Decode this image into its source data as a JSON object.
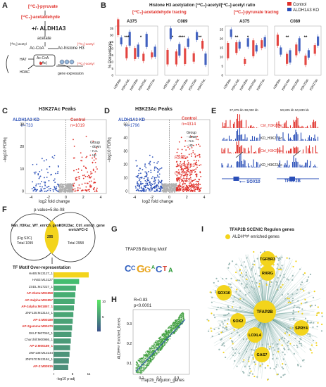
{
  "panels": {
    "A": {
      "label": "A",
      "pyruvate": "[¹³C₂]-pyruvate",
      "acetaldehyde": "[¹³C₂]-acetaldehyde",
      "aldh": "+/- ALDH1A3",
      "acetate": "acetate",
      "acoa": "Ac-CoA",
      "histone": "Ac-histone H3",
      "acetyl_lbl": "[¹³C₂]-acetyl",
      "acetyl_lbl2": "[¹³C₂]-acetyl",
      "acetyl_lbl3": "[¹³C₂]-acetyl",
      "hat": "HAT",
      "acoa2": "Ac-CoA",
      "ac_circ": "(•Ac)",
      "hdac": "HDAC",
      "gene_expr": "gene expression"
    },
    "B": {
      "label": "B",
      "title": "Histone H3 acetylation [¹³C₂]-acetyl/[¹²C₂]-acetyl ratio",
      "left_title": "[¹³C₂]-acetaldehyde tracing",
      "right_title": "[¹³C₂]-pyruvate tracing",
      "ylabel": "% Percentage",
      "legend": [
        "Control",
        "ALDH1A3 KO"
      ],
      "sub": [
        "A375",
        "C089",
        "A375",
        "C089"
      ],
      "xticks": [
        "H3K9ac",
        "H3K14ac",
        "H3K18ac",
        "H3K23ac",
        "H3K27ac"
      ],
      "yticks_left": [
        "0",
        "5",
        "10",
        "15",
        "20",
        "25",
        "30",
        "35"
      ],
      "yticks_right": [
        "0",
        "5",
        "10",
        "15",
        "20",
        "25"
      ]
    },
    "C": {
      "label": "C",
      "title": "H3K27Ac Peaks",
      "kd": "ALDH1A3 KD",
      "kd_n": "n=733",
      "ctrl": "Control",
      "ctrl_n": "n=1019",
      "legend_title": "Group",
      "legend": [
        "down",
        "n.s.",
        "up"
      ],
      "ylabel": "−log10 FDRq",
      "xlabel": "log2 fold change",
      "xticks": [
        "-4",
        "-2",
        "0",
        "2",
        "4"
      ],
      "yticks": [
        "0",
        "10",
        "20",
        "30"
      ]
    },
    "D": {
      "label": "D",
      "title": "H3K23Ac Peaks",
      "kd": "ALDH1A3 KD",
      "kd_n": "n=1796",
      "ctrl": "Control",
      "ctrl_n": "n=4314",
      "legend_title": "Group",
      "legend": [
        "down",
        "n.s.",
        "up"
      ],
      "genes": [
        "RXRG",
        "PFKFB3",
        "GAS7",
        "TFAP2B",
        "SOX10"
      ],
      "ylabel": "−log10 FDRq",
      "xlabel": "log2 fold change",
      "xticks": [
        "-4",
        "-2",
        "0",
        "2",
        "4"
      ],
      "yticks": [
        "0",
        "10",
        "20",
        "30",
        "40",
        "50"
      ]
    },
    "E": {
      "label": "E",
      "tracks": [
        "Ctrl_H3K27Ac",
        "KD_H3K27Ac",
        "Ctrl_H3K23Ac",
        "KD_H3K23Ac"
      ],
      "gene1": "SOX10",
      "gene2": "TFAP2B",
      "scale1": "37,875 kb   38,000 kb",
      "scale2": "50,825 kb   50,830 kb"
    },
    "F": {
      "label": "F",
      "pvalue": "p-value=5.8e-08",
      "left_set": "Pan_H3Kac_WT_enrich_gene",
      "left_note": "(Fig S3C)",
      "left_total": "Total 1099",
      "right_set": "H3K23ac_Ctrl_enrich_gene enrichFC>2",
      "right_total": "Total 2958",
      "overlap": "295",
      "tf_title": "TF Motif Over-representation",
      "motifs": [
        {
          "name": "HAB5:M13127_1",
          "red": false,
          "v": 11
        },
        {
          "name": "HAB3:M13127",
          "red": false,
          "v": 8
        },
        {
          "name": "ZXDL:M17227_1",
          "red": false,
          "v": 7
        },
        {
          "name": "AP-2beta:M01858",
          "red": true,
          "v": 6.8
        },
        {
          "name": "AP-2alpha:M01857",
          "red": true,
          "v": 6.6
        },
        {
          "name": "AP-2alpha:M01857_1",
          "red": true,
          "v": 6.4
        },
        {
          "name": "ZNF135:M13144_1",
          "red": false,
          "v": 6.2
        },
        {
          "name": "AP-2:M00189",
          "red": true,
          "v": 6
        },
        {
          "name": "AP-2gamma:M00470",
          "red": true,
          "v": 5.8
        },
        {
          "name": "GKLF:M07040_1",
          "red": false,
          "v": 5.6
        },
        {
          "name": "Churchill:M00986_1",
          "red": false,
          "v": 5.4
        },
        {
          "name": "AP-2:M00189_1",
          "red": true,
          "v": 5.2
        },
        {
          "name": "ZNF138:M13144",
          "red": false,
          "v": 5
        },
        {
          "name": "ZNF670:M13184_1",
          "red": false,
          "v": 4.8
        },
        {
          "name": "AP-2:M00915",
          "red": true,
          "v": 4.6
        }
      ],
      "xticks": [
        "0",
        "6",
        "11"
      ],
      "xlabel": "-log10 p-adj",
      "cbar": [
        "10",
        "5"
      ]
    },
    "G": {
      "label": "G",
      "title": "TFAP2B Binding Motif"
    },
    "H": {
      "label": "H",
      "r": "R=0.83",
      "p": "p<0.0001",
      "ylabel": "ALDHᴴⁱᵍʰ Enriched_Genes",
      "xlabel": "Tfap2b_regulon_genes",
      "xticks": [
        "0.1",
        "0.2",
        "0.3"
      ],
      "yticks": [
        "0.1",
        "0.2",
        "0.3"
      ]
    },
    "I": {
      "label": "I",
      "title": "TFAP2B SCENIC Regulon genes",
      "legend": "ALDHᴴⁱᵍʰ enriched genes",
      "nodes": [
        "TGFBR3",
        "RXRG",
        "SOX10",
        "TFAP2B",
        "SOX2",
        "LOXL4",
        "GAS7",
        "SPRY4"
      ]
    }
  },
  "colors": {
    "control": "#e0302a",
    "ko": "#2a4fb8",
    "ns": "#b0b0b0",
    "node": "#f3d41c",
    "edge": "#2f7a70"
  }
}
